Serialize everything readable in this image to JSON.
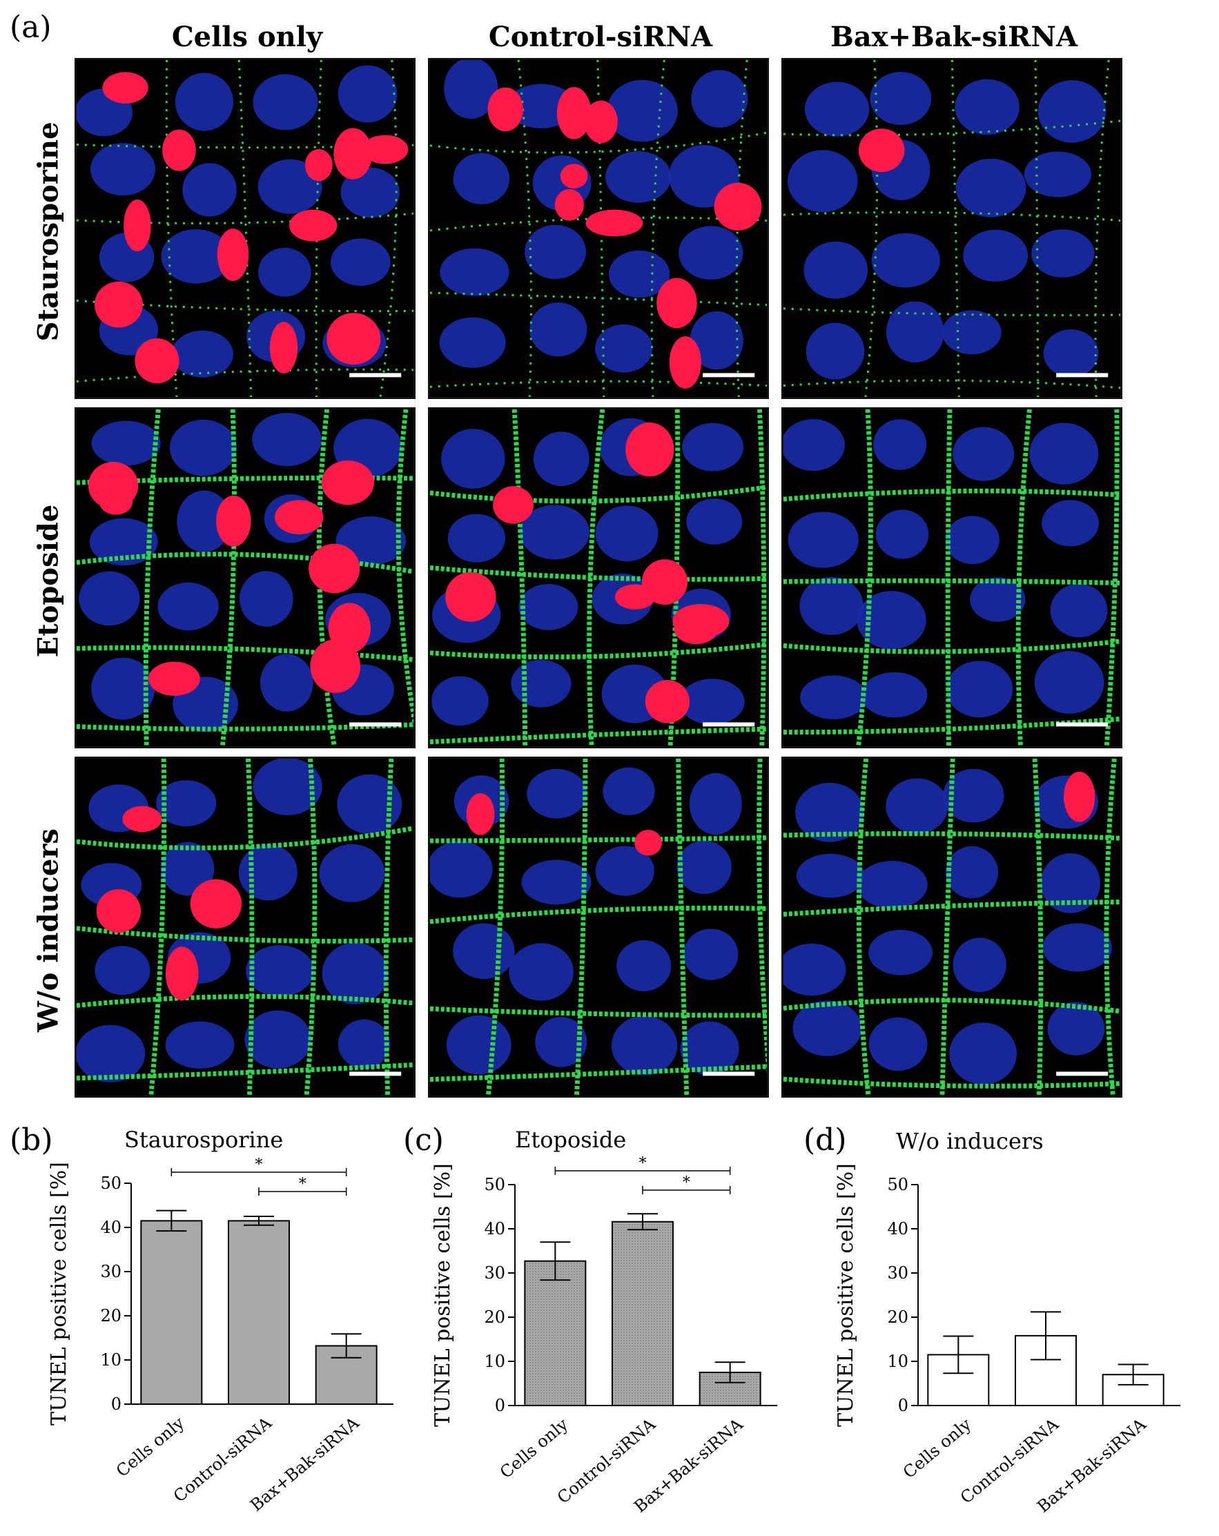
{
  "panels": {
    "a": "(a)",
    "b": "(b)",
    "c": "(c)",
    "d": "(d)"
  },
  "columns": [
    "Cells only",
    "Control-siRNA",
    "Bax+Bak-siRNA"
  ],
  "rows": [
    "Staurosporine",
    "Etoposide",
    "W/o inducers"
  ],
  "micrograph_colors": {
    "background": "#000000",
    "nucleus": "#1a2ba8",
    "tunel": "#ff1a4a",
    "membrane": "#2fd84a",
    "scalebar": "#ffffff"
  },
  "micrograph_dead_cells": [
    [
      12,
      9,
      1
    ],
    [
      9,
      8,
      0
    ],
    [
      4,
      2,
      1
    ]
  ],
  "chart_data": [
    {
      "type": "bar",
      "title": "Staurosporine",
      "ylabel": "TUNEL positive cells [%]",
      "categories": [
        "Cells only",
        "Control-siRNA",
        "Bax+Bak-siRNA"
      ],
      "values": [
        41.5,
        41.5,
        13.2
      ],
      "errors": [
        2.3,
        1.0,
        2.7
      ],
      "ylim": [
        0,
        50
      ],
      "yticks": [
        0,
        10,
        20,
        30,
        40,
        50
      ],
      "fill": "solid-gray",
      "significance": [
        {
          "from": 0,
          "to": 2,
          "label": "*"
        },
        {
          "from": 1,
          "to": 2,
          "label": "*"
        }
      ]
    },
    {
      "type": "bar",
      "title": "Etoposide",
      "ylabel": "TUNEL positive cells [%]",
      "categories": [
        "Cells only",
        "Control-siRNA",
        "Bax+Bak-siRNA"
      ],
      "values": [
        32.7,
        41.6,
        7.5
      ],
      "errors": [
        4.3,
        1.8,
        2.3
      ],
      "ylim": [
        0,
        50
      ],
      "yticks": [
        0,
        10,
        20,
        30,
        40,
        50
      ],
      "fill": "dotted-gray",
      "significance": [
        {
          "from": 0,
          "to": 2,
          "label": "*"
        },
        {
          "from": 1,
          "to": 2,
          "label": "*"
        }
      ]
    },
    {
      "type": "bar",
      "title": "W/o inducers",
      "ylabel": "TUNEL positive cells [%]",
      "categories": [
        "Cells only",
        "Control-siRNA",
        "Bax+Bak-siRNA"
      ],
      "values": [
        11.5,
        15.8,
        7.0
      ],
      "errors": [
        4.2,
        5.4,
        2.3
      ],
      "ylim": [
        0,
        50
      ],
      "yticks": [
        0,
        10,
        20,
        30,
        40,
        50
      ],
      "fill": "white",
      "significance": []
    }
  ]
}
